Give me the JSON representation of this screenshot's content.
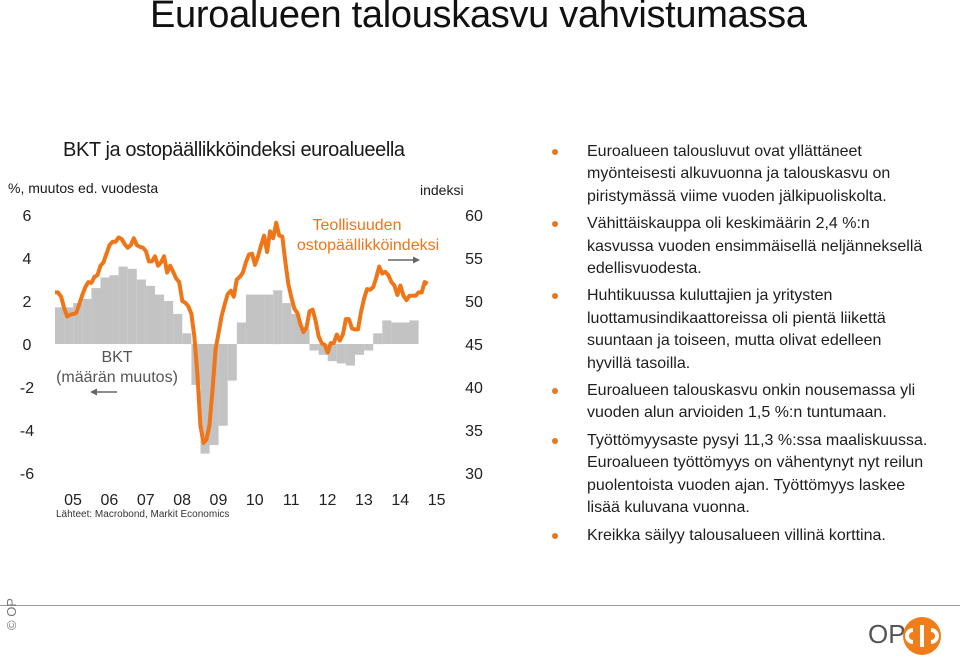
{
  "slide_title": "Euroalueen talouskasvu vahvistumassa",
  "chart_title": "BKT ja ostopäällikköindeksi euroalueella",
  "left_axis_unit": "%, muutos ed. vuodesta",
  "right_axis_unit": "indeksi",
  "source": "Lähteet: Macrobond, Markit Economics",
  "bullets": [
    "Euroalueen talousluvut ovat yllättäneet myönteisesti alkuvuonna ja talouskasvu on piristymässä viime vuoden jälkipuoliskolta.",
    "Vähittäiskauppa oli keskimäärin 2,4 %:n kasvussa vuoden ensimmäisellä neljänneksellä edellisvuodesta.",
    "Huhtikuussa kuluttajien ja yritysten luottamusindikaattoreissa oli pientä liikettä suuntaan ja toiseen, mutta olivat edelleen hyvillä tasoilla.",
    "Euroalueen talouskasvu onkin nousemassa yli vuoden alun arvioiden 1,5 %:n tuntumaan.",
    "Työttömyysaste pysyi 11,3 %:ssa maaliskuussa. Euroalueen työttömyys on vähentynyt nyt reilun puolentoista vuoden ajan. Työttömyys laskee lisää kuluvana vuonna.",
    "Kreikka säilyy talousalueen villinä korttina."
  ],
  "copyright": "© OP",
  "brand": "OP",
  "colors": {
    "pmi_line": "#ee7618",
    "gdp_bars": "#c3c3c3",
    "bullet": "#e87722",
    "logo": "#f07d19"
  },
  "chart_data": {
    "type": "bar+line",
    "x_ticks": [
      "05",
      "06",
      "07",
      "08",
      "09",
      "10",
      "11",
      "12",
      "13",
      "14",
      "15"
    ],
    "xlim": [
      2005.0,
      2016.0
    ],
    "left_axis": {
      "ticks": [
        "6",
        "4",
        "2",
        "0",
        "-2",
        "-4",
        "-6"
      ],
      "ylim": [
        -6,
        6
      ]
    },
    "right_axis": {
      "ticks": [
        "60",
        "55",
        "50",
        "45",
        "40",
        "35",
        "30"
      ],
      "ylim": [
        30,
        60
      ]
    },
    "series": [
      {
        "name": "BKT",
        "name_line2": "(määrän muutos)",
        "axis": "left",
        "kind": "bar",
        "x": [
          2005.0,
          2005.25,
          2005.5,
          2005.75,
          2006.0,
          2006.25,
          2006.5,
          2006.75,
          2007.0,
          2007.25,
          2007.5,
          2007.75,
          2008.0,
          2008.25,
          2008.5,
          2008.75,
          2009.0,
          2009.25,
          2009.5,
          2009.75,
          2010.0,
          2010.25,
          2010.5,
          2010.75,
          2011.0,
          2011.25,
          2011.5,
          2011.75,
          2012.0,
          2012.25,
          2012.5,
          2012.75,
          2013.0,
          2013.25,
          2013.5,
          2013.75,
          2014.0,
          2014.25,
          2014.5,
          2014.75
        ],
        "values": [
          1.7,
          1.7,
          1.9,
          2.1,
          2.6,
          3.1,
          3.2,
          3.6,
          3.5,
          3.0,
          2.7,
          2.3,
          2.0,
          1.4,
          0.5,
          -1.9,
          -5.1,
          -4.7,
          -3.8,
          -1.7,
          1.0,
          2.3,
          2.3,
          2.3,
          2.5,
          1.9,
          1.4,
          0.7,
          -0.3,
          -0.5,
          -0.8,
          -0.9,
          -1.0,
          -0.5,
          -0.3,
          0.5,
          1.1,
          1.0,
          1.0,
          1.1
        ]
      },
      {
        "name": "Teollisuuden",
        "name_line2": "ostopäällikköindeksi",
        "axis": "right",
        "kind": "line",
        "x_start": 2005.0,
        "step": 0.08333,
        "values": [
          51.0,
          51.0,
          50.5,
          49.2,
          48.2,
          48.4,
          48.5,
          48.6,
          49.6,
          50.7,
          51.6,
          52.2,
          52.1,
          52.8,
          53.0,
          54.1,
          54.5,
          55.5,
          56.5,
          56.9,
          56.9,
          57.4,
          57.2,
          56.6,
          56.2,
          56.5,
          57.3,
          56.5,
          56.3,
          56.2,
          55.8,
          54.6,
          54.6,
          55.2,
          54.1,
          54.5,
          55.2,
          53.3,
          54.1,
          53.4,
          52.6,
          52.2,
          50.0,
          49.8,
          49.4,
          48.5,
          45.8,
          41.5,
          35.5,
          33.5,
          33.9,
          35.6,
          39.8,
          44.4,
          46.3,
          48.3,
          49.6,
          50.8,
          51.2,
          50.5,
          52.5,
          52.8,
          53.3,
          54.5,
          55.4,
          55.5,
          54.2,
          55.2,
          56.5,
          57.6,
          55.7,
          58.1,
          57.3,
          59.1,
          57.6,
          57.5,
          54.6,
          52.0,
          50.4,
          49.1,
          48.6,
          47.3,
          46.4,
          46.9,
          48.8,
          49.0,
          47.7,
          45.9,
          45.1,
          44.9,
          44.0,
          45.1,
          45.1,
          46.1,
          45.4,
          46.1,
          47.9,
          47.9,
          46.8,
          46.7,
          46.7,
          48.7,
          50.3,
          51.4,
          51.3,
          51.6,
          52.7,
          54.0,
          53.2,
          53.4,
          53.0,
          52.2,
          51.8,
          50.7,
          51.8,
          50.6,
          50.1,
          50.6,
          50.6,
          50.6,
          51.0,
          51.0,
          52.2,
          52.0
        ]
      }
    ],
    "annotations": [
      {
        "text": "BKT",
        "text2": "(määrän muutos)",
        "arrow": "left"
      },
      {
        "text": "Teollisuuden",
        "text2": "ostopäällikköindeksi",
        "arrow": "right"
      }
    ],
    "grid": false,
    "legend": "none"
  }
}
